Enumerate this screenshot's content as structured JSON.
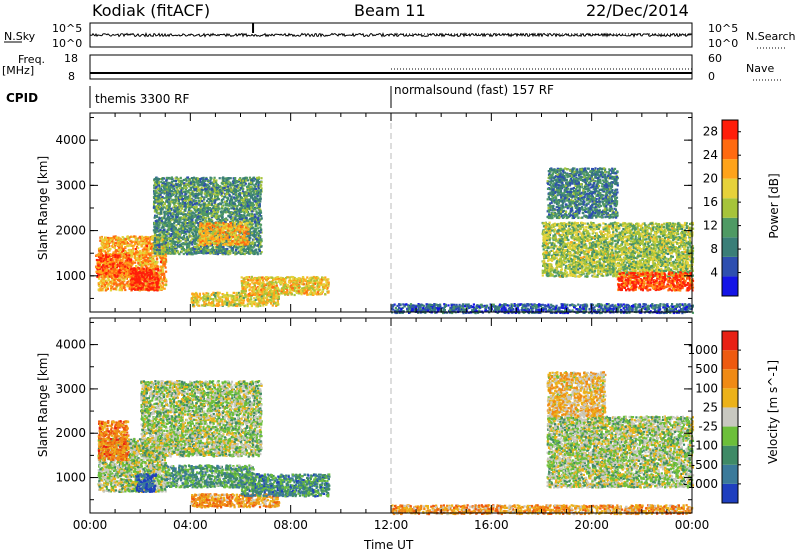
{
  "header": {
    "station": "Kodiak (fitACF)",
    "beam": "Beam 11",
    "date": "22/Dec/2014"
  },
  "strips": {
    "nsky_label": "N.Sky",
    "nsky_top": "10^5",
    "nsky_bottom": "10^0",
    "nsearch_label": "N.Search",
    "nsearch_top": "10^5",
    "nsearch_bottom": "10^0",
    "freq_label": "Freq.",
    "freq_unit": "[MHz]",
    "freq_top": "18",
    "freq_bottom": "8",
    "nave_label": "Nave",
    "nave_top": "60",
    "nave_bottom": "0",
    "cpid_label": "CPID",
    "cpid_mode1": "themis 3300 RF",
    "cpid_mode2": "normalsound (fast) 157 RF"
  },
  "colors": {
    "power_scale": [
      "#1414e6",
      "#2e4fb0",
      "#3a7e78",
      "#4f9a64",
      "#a6c43a",
      "#e6d23a",
      "#ffa31a",
      "#ff6a10",
      "#ff1e0a"
    ],
    "velocity_scale": [
      "#1f3fbf",
      "#3b7a9a",
      "#3f8a66",
      "#6cbf3a",
      "#c8c8c0",
      "#ecb21a",
      "#f08a14",
      "#ee5a10",
      "#e82014"
    ]
  },
  "chart_data": [
    {
      "type": "heatmap",
      "panel": "power",
      "ylabel": "Slant Range [km]",
      "yticks": [
        "1000",
        "2000",
        "3000",
        "4000"
      ],
      "ylim": [
        200,
        4600
      ],
      "xlim_hours": [
        0,
        24
      ],
      "colorbar_label": "Power [dB]",
      "colorbar_ticks": [
        "4",
        "8",
        "12",
        "16",
        "20",
        "24",
        "28"
      ],
      "colorbar_range": [
        0,
        30
      ],
      "blobs": [
        {
          "t0": 0.3,
          "t1": 3.0,
          "r0": 700,
          "r1": 1900,
          "level": 0.72
        },
        {
          "t0": 1.6,
          "t1": 2.7,
          "r0": 700,
          "r1": 1200,
          "level": 0.95
        },
        {
          "t0": 0.2,
          "t1": 1.6,
          "r0": 1000,
          "r1": 1500,
          "level": 0.85
        },
        {
          "t0": 2.5,
          "t1": 6.8,
          "r0": 1500,
          "r1": 3200,
          "level": 0.35
        },
        {
          "t0": 4.3,
          "t1": 6.3,
          "r0": 1700,
          "r1": 2200,
          "level": 0.7
        },
        {
          "t0": 4.0,
          "t1": 7.5,
          "r0": 350,
          "r1": 650,
          "level": 0.6
        },
        {
          "t0": 6.0,
          "t1": 9.5,
          "r0": 600,
          "r1": 1000,
          "level": 0.65
        },
        {
          "t0": 18.0,
          "t1": 24.0,
          "r0": 1000,
          "r1": 2200,
          "level": 0.5
        },
        {
          "t0": 21.0,
          "t1": 24.0,
          "r0": 700,
          "r1": 1100,
          "level": 0.88
        },
        {
          "t0": 18.2,
          "t1": 21.0,
          "r0": 2300,
          "r1": 3400,
          "level": 0.3
        },
        {
          "t0": 12.0,
          "t1": 24.0,
          "r0": 200,
          "r1": 400,
          "level": 0.2
        }
      ]
    },
    {
      "type": "heatmap",
      "panel": "velocity",
      "ylabel": "Slant Range [km]",
      "yticks": [
        "1000",
        "2000",
        "3000",
        "4000"
      ],
      "ylim": [
        200,
        4600
      ],
      "xlim_hours": [
        0,
        24
      ],
      "xticks": [
        "00:00",
        "04:00",
        "08:00",
        "12:00",
        "16:00",
        "20:00",
        "00:00"
      ],
      "xlabel": "Time UT",
      "colorbar_label": "Velocity [m s^-1]",
      "colorbar_ticks": [
        "-1000",
        "-500",
        "-100",
        "-25",
        "25",
        "100",
        "500",
        "1000"
      ],
      "blobs": [
        {
          "t0": 0.3,
          "t1": 3.0,
          "r0": 700,
          "r1": 1900,
          "level": 0.45
        },
        {
          "t0": 2.0,
          "t1": 6.8,
          "r0": 1500,
          "r1": 3200,
          "level": 0.45
        },
        {
          "t0": 0.3,
          "t1": 1.5,
          "r0": 1400,
          "r1": 2300,
          "level": 0.75
        },
        {
          "t0": 1.8,
          "t1": 2.6,
          "r0": 700,
          "r1": 1100,
          "level": 0.05
        },
        {
          "t0": 4.0,
          "t1": 7.5,
          "r0": 350,
          "r1": 650,
          "level": 0.7
        },
        {
          "t0": 6.0,
          "t1": 9.5,
          "r0": 600,
          "r1": 1100,
          "level": 0.25
        },
        {
          "t0": 3.0,
          "t1": 6.5,
          "r0": 800,
          "r1": 1300,
          "level": 0.3
        },
        {
          "t0": 18.2,
          "t1": 24.0,
          "r0": 800,
          "r1": 2400,
          "level": 0.45
        },
        {
          "t0": 18.2,
          "t1": 20.5,
          "r0": 2400,
          "r1": 3400,
          "level": 0.6
        },
        {
          "t0": 12.0,
          "t1": 24.0,
          "r0": 200,
          "r1": 400,
          "level": 0.68
        }
      ]
    }
  ]
}
